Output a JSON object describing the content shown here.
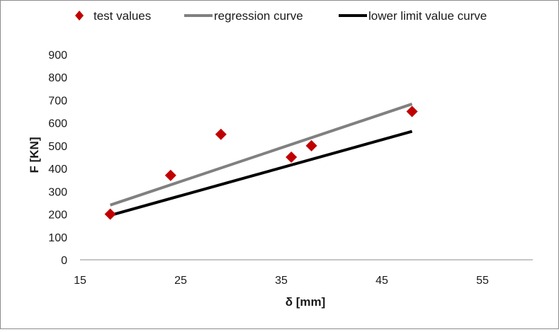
{
  "chart_data": {
    "type": "scatter",
    "xlabel": "δ [mm]",
    "ylabel": "F [KN]",
    "xlim": [
      15,
      60
    ],
    "ylim": [
      0,
      900
    ],
    "x_ticks": [
      15,
      25,
      35,
      45,
      55
    ],
    "y_ticks": [
      0,
      100,
      200,
      300,
      400,
      500,
      600,
      700,
      800,
      900
    ],
    "x_tick_labels": [
      "15",
      "25",
      "35",
      "45",
      "55"
    ],
    "y_tick_labels": [
      "0",
      "100",
      "200",
      "300",
      "400",
      "500",
      "600",
      "700",
      "800",
      "900"
    ],
    "grid": false,
    "legend_position": "top",
    "series": [
      {
        "name": "test values",
        "kind": "scatter",
        "marker": "diamond",
        "color": "#c00000",
        "points": [
          {
            "x": 18,
            "y": 200
          },
          {
            "x": 24,
            "y": 370
          },
          {
            "x": 29,
            "y": 550
          },
          {
            "x": 36,
            "y": 450
          },
          {
            "x": 38,
            "y": 500
          },
          {
            "x": 48,
            "y": 650
          }
        ]
      },
      {
        "name": "regression curve",
        "kind": "line",
        "color": "#808080",
        "points": [
          {
            "x": 18,
            "y": 240
          },
          {
            "x": 48,
            "y": 683
          }
        ]
      },
      {
        "name": "lower limit value curve",
        "kind": "line",
        "color": "#000000",
        "points": [
          {
            "x": 18,
            "y": 195
          },
          {
            "x": 48,
            "y": 563
          }
        ]
      }
    ]
  }
}
